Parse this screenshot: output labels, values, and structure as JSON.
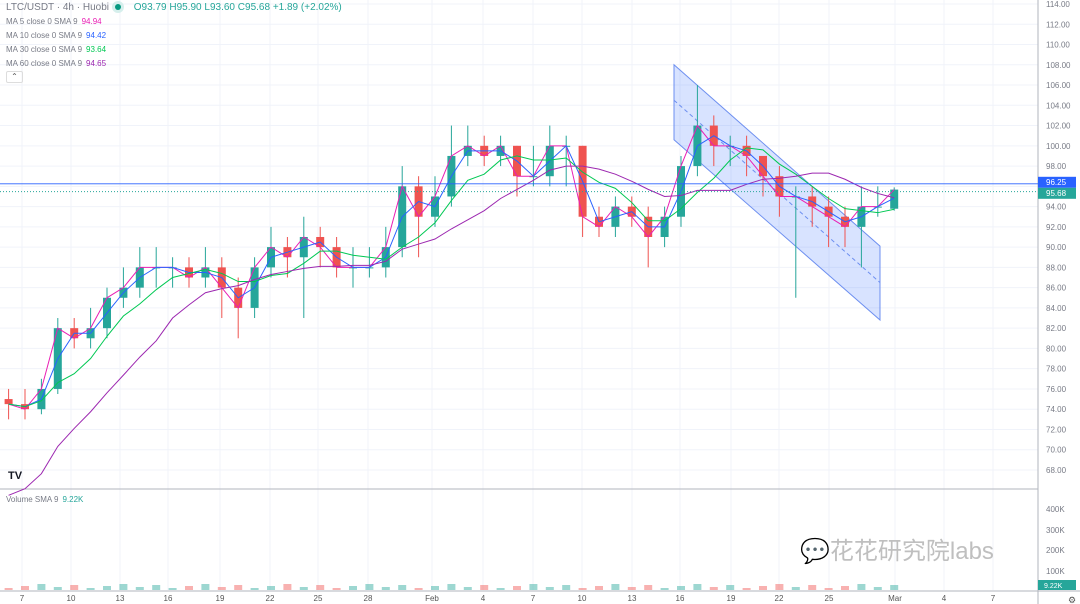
{
  "header": {
    "symbol": "LTC/USDT · 4h · Huobi",
    "open": "O93.79",
    "high": "H95.90",
    "low": "L93.60",
    "close": "C95.68",
    "change": "+1.89 (+2.02%)"
  },
  "indicators": [
    {
      "label": "MA 5 close 0 SMA 9",
      "value": "94.94",
      "color": "#e91eb4"
    },
    {
      "label": "MA 10 close 0 SMA 9",
      "value": "94.42",
      "color": "#2962ff"
    },
    {
      "label": "MA 30 close 0 SMA 9",
      "value": "93.64",
      "color": "#00c853"
    },
    {
      "label": "MA 60 close 0 SMA 9",
      "value": "94.65",
      "color": "#9c27b0"
    }
  ],
  "volume_label": {
    "label": "Volume SMA 9",
    "value": "9.22K"
  },
  "watermark": "花花研究院labs",
  "colors": {
    "up": "#26a69a",
    "down": "#ef5350",
    "channel": "#2962ff"
  },
  "chart_data": {
    "type": "candlestick",
    "ylim": [
      66,
      115
    ],
    "price_ticks": [
      "114.00",
      "112.00",
      "110.00",
      "108.00",
      "106.00",
      "104.00",
      "102.00",
      "100.00",
      "98.00",
      "96.00",
      "94.00",
      "92.00",
      "90.00",
      "88.00",
      "86.00",
      "84.00",
      "82.00",
      "80.00",
      "78.00",
      "76.00",
      "74.00",
      "72.00",
      "70.00",
      "68.00"
    ],
    "volume_ticks": [
      "400K",
      "300K",
      "200K",
      "100K"
    ],
    "time_ticks": [
      "7",
      "10",
      "13",
      "16",
      "19",
      "22",
      "25",
      "28",
      "Feb",
      "4",
      "7",
      "10",
      "13",
      "16",
      "19",
      "22",
      "25",
      "Mar",
      "4",
      "7"
    ],
    "last_price": "95.68",
    "marker_price": "96.25",
    "last_volume": "9.22K",
    "daily_ohlc": [
      [
        "Jan 6",
        75,
        76,
        73,
        74.5
      ],
      [
        "Jan 7",
        74.5,
        76,
        73,
        74
      ],
      [
        "Jan 8",
        74,
        77,
        73.5,
        76
      ],
      [
        "Jan 9",
        76,
        83,
        75.5,
        82
      ],
      [
        "Jan 10",
        82,
        83,
        80,
        81
      ],
      [
        "Jan 11",
        81,
        84,
        80,
        82
      ],
      [
        "Jan 12",
        82,
        86,
        81,
        85
      ],
      [
        "Jan 13",
        85,
        88,
        84,
        86
      ],
      [
        "Jan 14",
        86,
        90,
        85,
        88
      ],
      [
        "Jan 15",
        88,
        90,
        86,
        88
      ],
      [
        "Jan 16",
        88,
        89,
        86,
        88
      ],
      [
        "Jan 17",
        88,
        89,
        86,
        87
      ],
      [
        "Jan 18",
        87,
        90,
        86,
        88
      ],
      [
        "Jan 19",
        88,
        89,
        83,
        86
      ],
      [
        "Jan 20",
        86,
        87,
        81,
        84
      ],
      [
        "Jan 21",
        84,
        89,
        83,
        88
      ],
      [
        "Jan 22",
        88,
        92,
        87,
        90
      ],
      [
        "Jan 23",
        90,
        91,
        87,
        89
      ],
      [
        "Jan 24",
        89,
        93,
        83,
        91
      ],
      [
        "Jan 25",
        91,
        92,
        88,
        90
      ],
      [
        "Jan 26",
        90,
        91,
        87,
        88
      ],
      [
        "Jan 27",
        88,
        90,
        86,
        88
      ],
      [
        "Jan 28",
        88,
        90,
        87,
        88
      ],
      [
        "Jan 29",
        88,
        92,
        87,
        90
      ],
      [
        "Jan 30",
        90,
        98,
        89,
        96
      ],
      [
        "Jan 31",
        96,
        97,
        89,
        93
      ],
      [
        "Feb 1",
        93,
        97,
        92,
        95
      ],
      [
        "Feb 2",
        95,
        102,
        94,
        99
      ],
      [
        "Feb 3",
        99,
        102,
        98,
        100
      ],
      [
        "Feb 4",
        100,
        101,
        98,
        99
      ],
      [
        "Feb 5",
        99,
        101,
        98,
        100
      ],
      [
        "Feb 6",
        100,
        100,
        95,
        97
      ],
      [
        "Feb 7",
        97,
        100,
        96,
        97
      ],
      [
        "Feb 8",
        97,
        102,
        96,
        100
      ],
      [
        "Feb 9",
        100,
        101,
        96,
        100
      ],
      [
        "Feb 10",
        100,
        100,
        91,
        93
      ],
      [
        "Feb 11",
        93,
        94,
        91,
        92
      ],
      [
        "Feb 12",
        92,
        95,
        91,
        94
      ],
      [
        "Feb 13",
        94,
        95,
        92,
        93
      ],
      [
        "Feb 14",
        93,
        94,
        88,
        91
      ],
      [
        "Feb 15",
        91,
        94,
        90,
        93
      ],
      [
        "Feb 16",
        93,
        99,
        92,
        98
      ],
      [
        "Feb 17",
        98,
        106,
        97,
        102
      ],
      [
        "Feb 18",
        102,
        103,
        98,
        100
      ],
      [
        "Feb 19",
        100,
        101,
        98,
        100
      ],
      [
        "Feb 20",
        100,
        101,
        97,
        99
      ],
      [
        "Feb 21",
        99,
        99,
        95,
        97
      ],
      [
        "Feb 22",
        97,
        98,
        93,
        95
      ],
      [
        "Feb 23",
        95,
        96,
        85,
        95
      ],
      [
        "Feb 24",
        95,
        96,
        92,
        94
      ],
      [
        "Feb 25",
        94,
        95,
        90,
        93
      ],
      [
        "Feb 26",
        93,
        94,
        90,
        92
      ],
      [
        "Feb 27",
        92,
        96,
        88,
        94
      ],
      [
        "Feb 28",
        94,
        96,
        93,
        94
      ],
      [
        "Mar 1",
        93.79,
        95.9,
        93.6,
        95.68
      ]
    ],
    "channel": {
      "start": "Feb 15 18:00",
      "end": "Feb 28 06:00",
      "upper": [
        108.0,
        90.1
      ],
      "middle": [
        104.5,
        86.5
      ],
      "lower": [
        100.6,
        82.8
      ]
    }
  }
}
